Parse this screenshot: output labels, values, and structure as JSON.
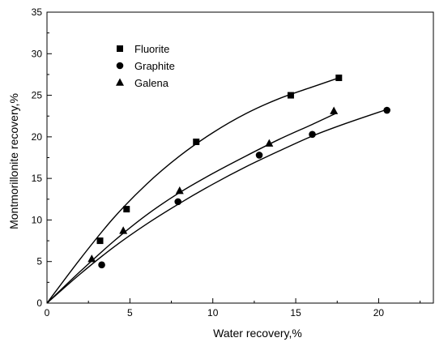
{
  "chart_data": {
    "type": "scatter",
    "title": "",
    "xlabel": "Water recovery,%",
    "ylabel": "Montmorillonite recovery,%",
    "xlim": [
      0,
      23.3
    ],
    "ylim": [
      0,
      35
    ],
    "xticks": [
      0,
      5,
      10,
      15,
      20
    ],
    "yticks": [
      0,
      5,
      10,
      15,
      20,
      25,
      30,
      35
    ],
    "grid": false,
    "legend_position": "top-left",
    "series": [
      {
        "name": "Fluorite",
        "marker": "square",
        "x": [
          3.2,
          4.8,
          9.0,
          14.7,
          17.6
        ],
        "y": [
          7.5,
          11.3,
          19.4,
          25.0,
          27.1
        ],
        "fit": [
          [
            0,
            0
          ],
          [
            2,
            5.3
          ],
          [
            4,
            10.2
          ],
          [
            6,
            14.3
          ],
          [
            8,
            17.7
          ],
          [
            10,
            20.5
          ],
          [
            12,
            22.8
          ],
          [
            14,
            24.6
          ],
          [
            16,
            26.0
          ],
          [
            17.6,
            27.1
          ]
        ]
      },
      {
        "name": "Graphite",
        "marker": "circle",
        "x": [
          3.3,
          7.9,
          12.8,
          16.0,
          20.5
        ],
        "y": [
          4.6,
          12.2,
          17.8,
          20.3,
          23.2
        ],
        "fit": [
          [
            0,
            0
          ],
          [
            2,
            3.5
          ],
          [
            4,
            6.7
          ],
          [
            6,
            9.5
          ],
          [
            8,
            12.0
          ],
          [
            10,
            14.3
          ],
          [
            12,
            16.4
          ],
          [
            14,
            18.3
          ],
          [
            16,
            20.1
          ],
          [
            18,
            21.6
          ],
          [
            20.5,
            23.3
          ]
        ]
      },
      {
        "name": "Galena",
        "marker": "triangle",
        "x": [
          2.7,
          4.6,
          8.0,
          13.4,
          17.3
        ],
        "y": [
          5.3,
          8.7,
          13.5,
          19.2,
          23.1
        ],
        "fit": [
          [
            0,
            0
          ],
          [
            2,
            3.8
          ],
          [
            4,
            7.4
          ],
          [
            6,
            10.6
          ],
          [
            8,
            13.3
          ],
          [
            10,
            15.6
          ],
          [
            12,
            17.7
          ],
          [
            14,
            19.7
          ],
          [
            16,
            21.5
          ],
          [
            17.5,
            22.9
          ]
        ]
      }
    ]
  }
}
